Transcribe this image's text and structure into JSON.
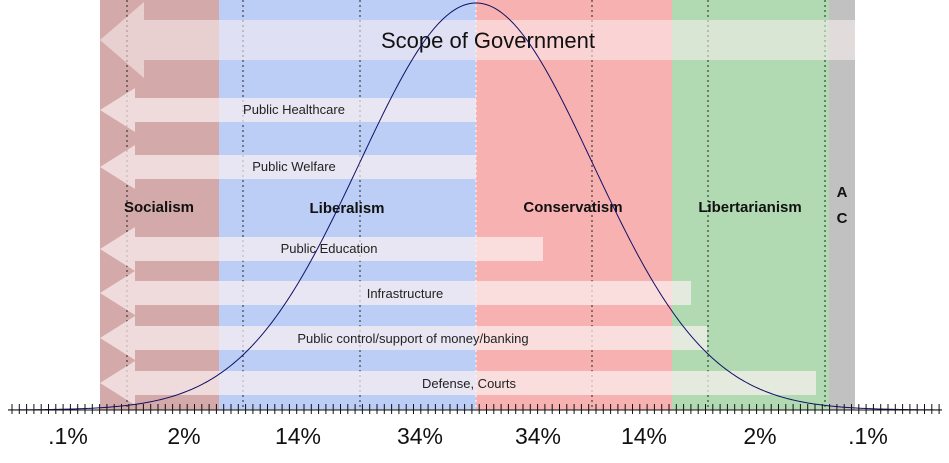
{
  "title": "Scope of Government",
  "colors": {
    "socialism": "#d3a9a9",
    "liberalism": "#bccdf6",
    "conservatism": "#f8b1b1",
    "libertarianism": "#b2dab2",
    "anarcho_capitalism": "#c1c1c1",
    "arrow": "#fbf1f1",
    "curve": "#111166"
  },
  "bands": [
    {
      "key": "socialism",
      "label": "Socialism"
    },
    {
      "key": "liberalism",
      "label": "Liberalism"
    },
    {
      "key": "conservatism",
      "label": "Conservatism"
    },
    {
      "key": "libertarianism",
      "label": "Libertarianism"
    },
    {
      "key": "anarcho_capitalism",
      "label_line1": "A",
      "label_line2": "C"
    }
  ],
  "arrows": [
    {
      "label": "Public Healthcare"
    },
    {
      "label": "Public Welfare"
    },
    {
      "label": "Public Education"
    },
    {
      "label": "Infrastructure"
    },
    {
      "label": "Public control/support of money/banking"
    },
    {
      "label": "Defense, Courts"
    }
  ],
  "percentages": [
    ".1%",
    "2%",
    "14%",
    "34%",
    "34%",
    "14%",
    "2%",
    ".1%"
  ]
}
